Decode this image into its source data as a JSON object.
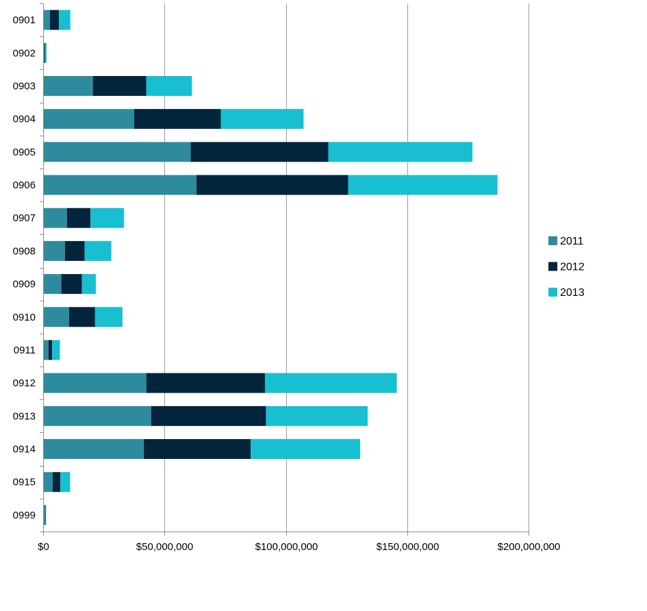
{
  "chart_data": {
    "type": "bar",
    "orientation": "horizontal",
    "stacked": true,
    "title": "",
    "xlabel": "",
    "ylabel": "",
    "xlim": [
      0,
      200000000
    ],
    "x_ticks": [
      0,
      50000000,
      100000000,
      150000000,
      200000000
    ],
    "x_tick_labels": [
      "$0",
      "$50,000,000",
      "$100,000,000",
      "$150,000,000",
      "$200,000,000"
    ],
    "grid": "vertical",
    "legend_position": "right",
    "categories": [
      "0901",
      "0902",
      "0903",
      "0904",
      "0905",
      "0906",
      "0907",
      "0908",
      "0909",
      "0910",
      "0911",
      "0912",
      "0913",
      "0914",
      "0915",
      "0999"
    ],
    "series": [
      {
        "name": "2011",
        "color": "#2E8B9E",
        "values": [
          2800000,
          600000,
          20500000,
          37500000,
          60800000,
          63200000,
          9800000,
          9000000,
          7500000,
          10700000,
          2200000,
          42500000,
          44500000,
          41500000,
          3900000,
          800000
        ]
      },
      {
        "name": "2012",
        "color": "#03253C",
        "values": [
          3700000,
          300000,
          22000000,
          35700000,
          56700000,
          62500000,
          9700000,
          8100000,
          8500000,
          10700000,
          1500000,
          48900000,
          47300000,
          44000000,
          3200000,
          200000
        ]
      },
      {
        "name": "2013",
        "color": "#17BFD1",
        "values": [
          4700000,
          500000,
          18800000,
          34100000,
          59400000,
          61500000,
          13800000,
          11000000,
          5700000,
          11300000,
          3200000,
          54300000,
          41900000,
          45100000,
          4000000,
          200000
        ]
      }
    ]
  }
}
